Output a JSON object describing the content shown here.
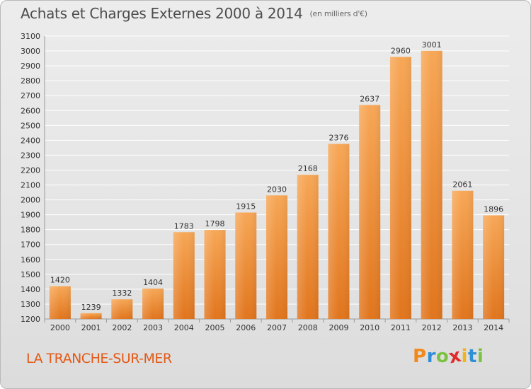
{
  "title": "Achats et Charges Externes 2000 à 2014",
  "subtitle": "(en milliers d'€)",
  "location": "LA TRANCHE-SUR-MER",
  "logo": {
    "letters": [
      "P",
      "r",
      "o",
      "x",
      "i",
      "t",
      "i"
    ],
    "colors": [
      "#f08a1d",
      "#2f8fd6",
      "#7cc242",
      "#e02a2a",
      "#f0b41d",
      "#2f8fd6",
      "#7cc242"
    ]
  },
  "colors": {
    "bar_light": "#f7a756",
    "bar_dark": "#e1751d",
    "accent": "#e45a17"
  },
  "chart_data": {
    "type": "bar",
    "title": "Achats et Charges Externes 2000 à 2014",
    "subtitle": "(en milliers d'€)",
    "xlabel": "",
    "ylabel": "",
    "categories": [
      "2000",
      "2001",
      "2002",
      "2003",
      "2004",
      "2005",
      "2006",
      "2007",
      "2008",
      "2009",
      "2010",
      "2011",
      "2012",
      "2013",
      "2014"
    ],
    "values": [
      1420,
      1239,
      1332,
      1404,
      1783,
      1798,
      1915,
      2030,
      2168,
      2376,
      2637,
      2960,
      3001,
      2061,
      1896
    ],
    "ylim": [
      1200,
      3100
    ],
    "yticks": [
      1200,
      1300,
      1400,
      1500,
      1600,
      1700,
      1800,
      1900,
      2000,
      2100,
      2200,
      2300,
      2400,
      2500,
      2600,
      2700,
      2800,
      2900,
      3000,
      3100
    ],
    "grid": true,
    "value_labels": true
  }
}
